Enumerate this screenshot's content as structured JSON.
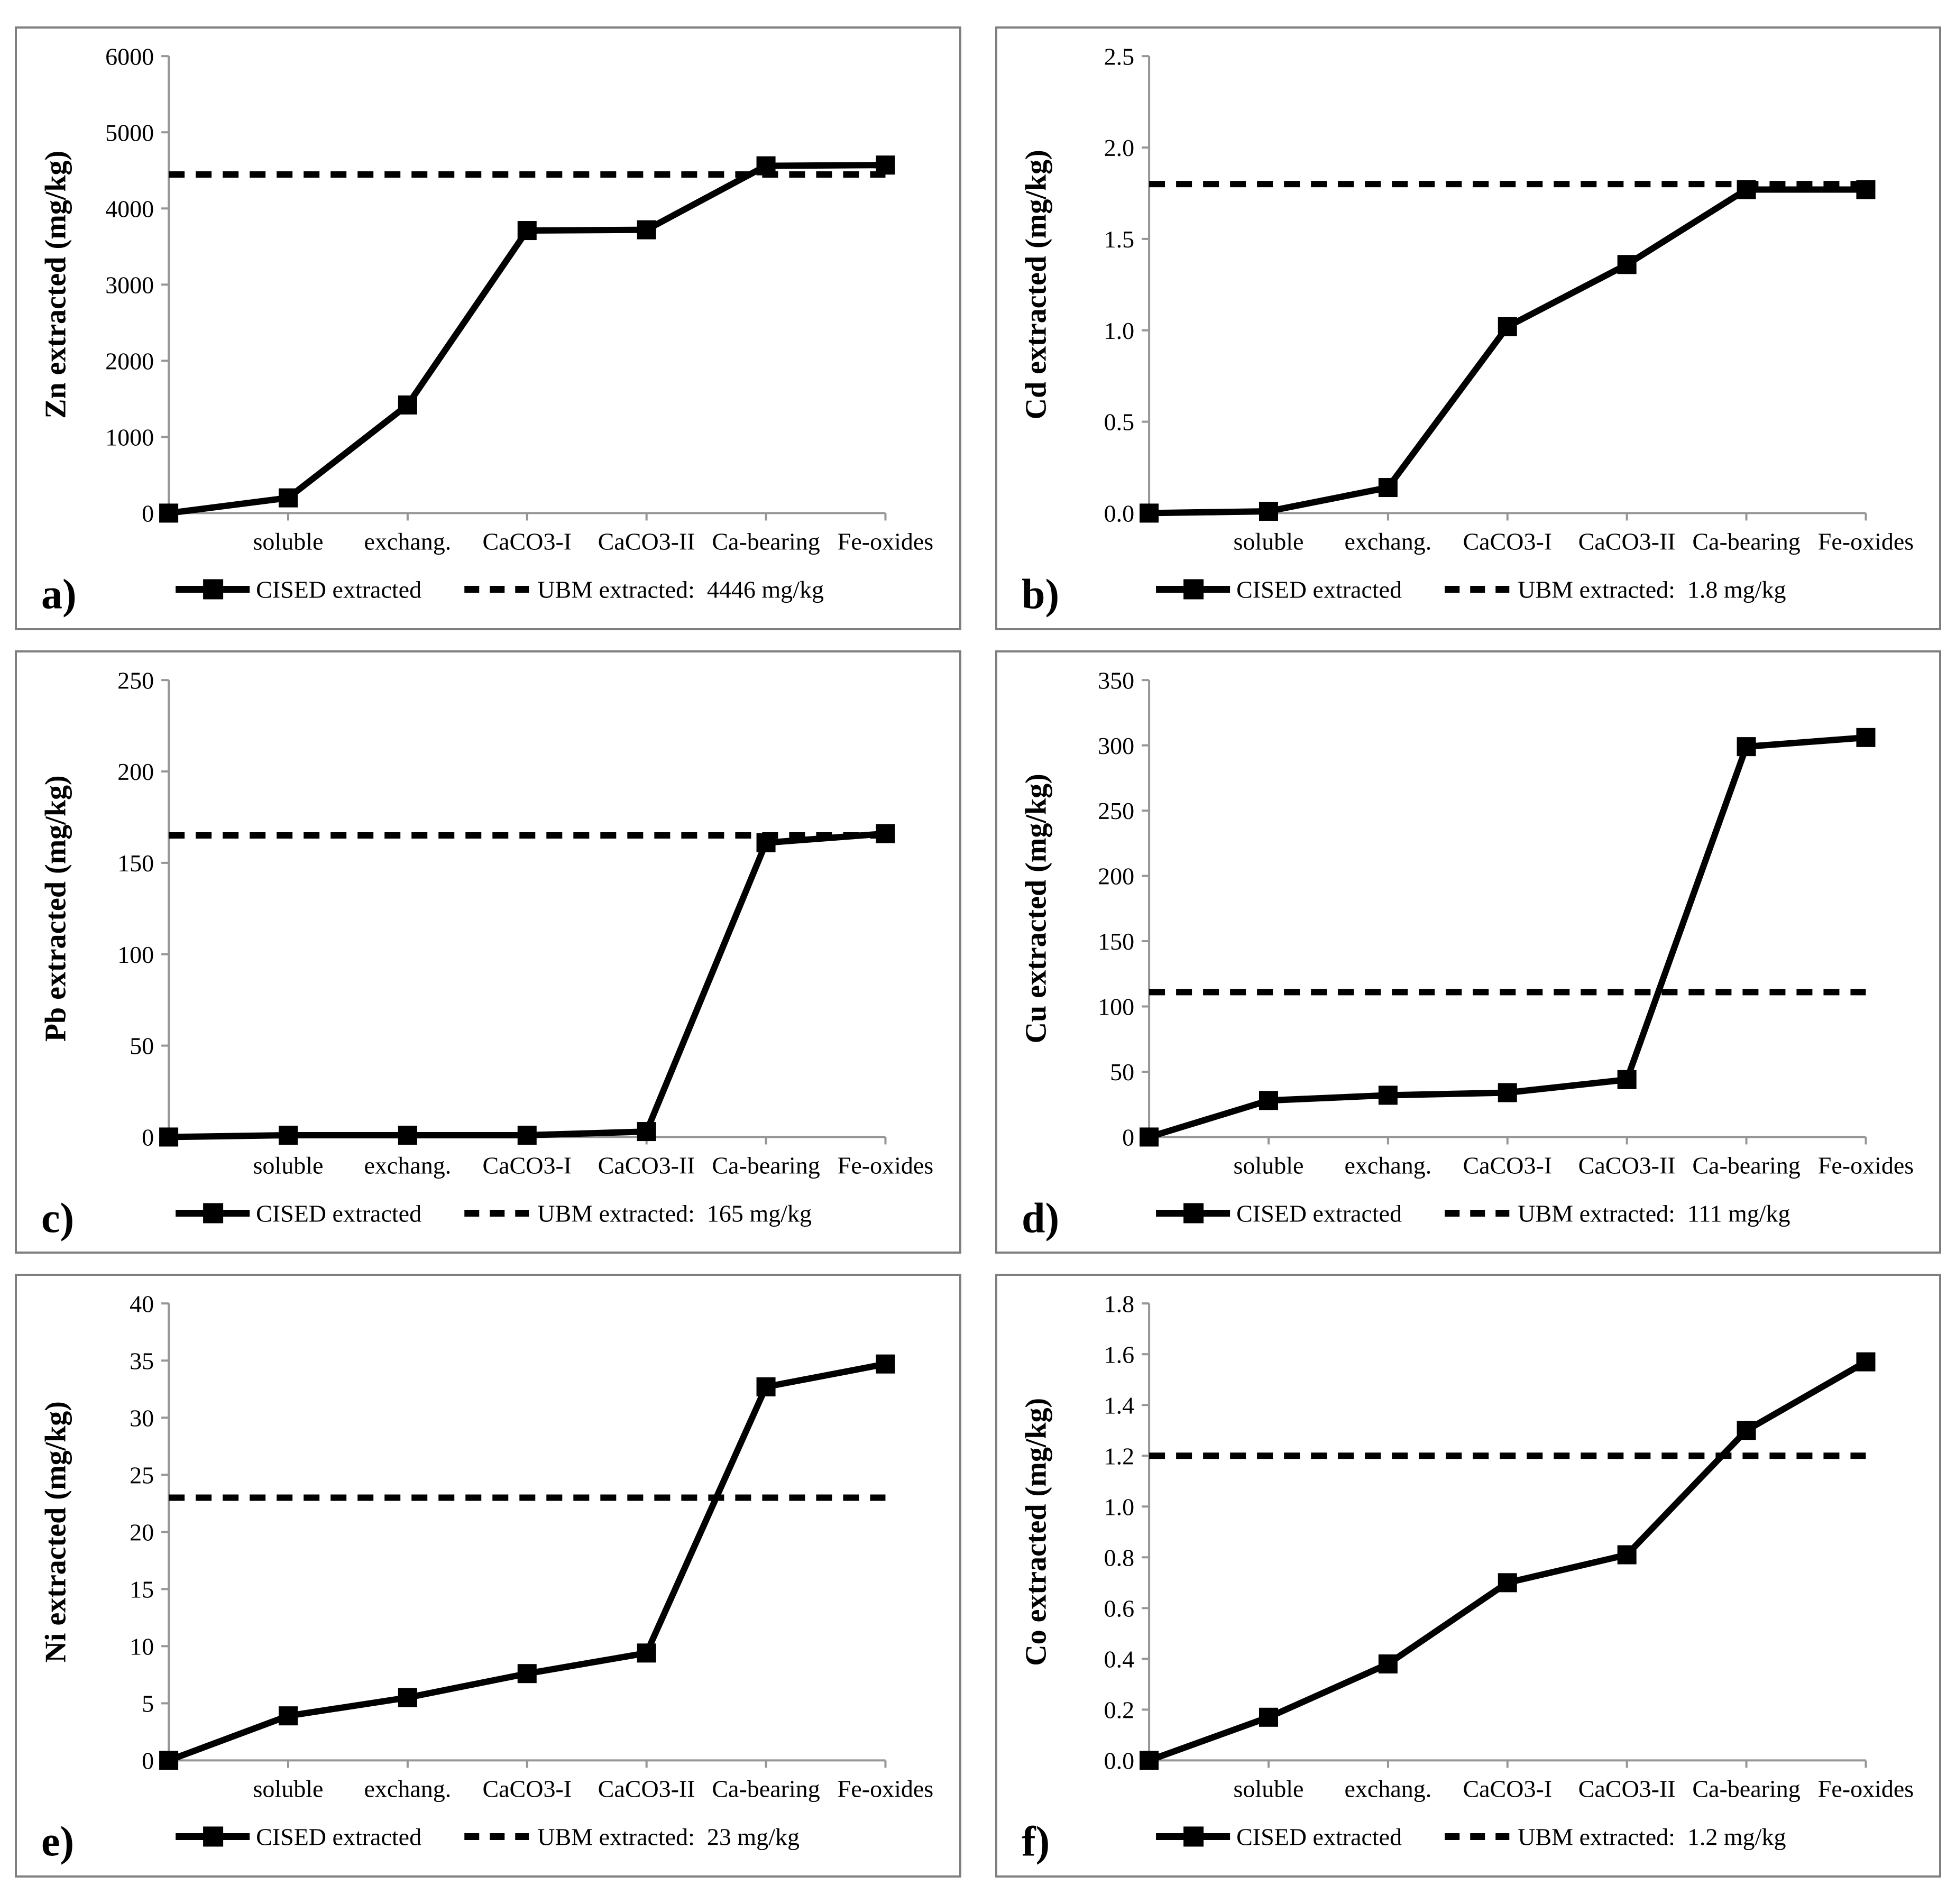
{
  "colors": {
    "series": "#000000",
    "reference_line": "#000000",
    "axis": "#969696",
    "panel_border": "#7f7f7f",
    "background": "#ffffff",
    "text": "#000000"
  },
  "chart_data": [
    {
      "type": "line",
      "panel_label": "a)",
      "ylabel": "Zn extracted (mg/kg)",
      "xlabel": "",
      "ylim": [
        0,
        6000
      ],
      "ytick_step": 1000,
      "yticks": [
        "0",
        "1000",
        "2000",
        "3000",
        "4000",
        "5000",
        "6000"
      ],
      "categories": [
        "",
        "soluble",
        "exchang.",
        "CaCO3-I",
        "CaCO3-II",
        "Ca-bearing",
        "Fe-oxides"
      ],
      "series": [
        {
          "name": "CISED extracted",
          "marker": "filled-square",
          "values": [
            0,
            200,
            1420,
            3710,
            3720,
            4560,
            4570
          ]
        }
      ],
      "reference_line": {
        "label": "UBM extracted:  4446 mg/kg",
        "value": 4446,
        "style": "dashed"
      },
      "grid": "off",
      "legend_position": "bottom"
    },
    {
      "type": "line",
      "panel_label": "b)",
      "ylabel": "Cd extracted (mg/kg)",
      "xlabel": "",
      "ylim": [
        0,
        2.5
      ],
      "ytick_step": 0.5,
      "yticks": [
        "0.0",
        "0.5",
        "1.0",
        "1.5",
        "2.0",
        "2.5"
      ],
      "categories": [
        "",
        "soluble",
        "exchang.",
        "CaCO3-I",
        "CaCO3-II",
        "Ca-bearing",
        "Fe-oxides"
      ],
      "series": [
        {
          "name": "CISED extracted",
          "marker": "filled-square",
          "values": [
            0,
            0.01,
            0.14,
            1.02,
            1.36,
            1.77,
            1.77
          ]
        }
      ],
      "reference_line": {
        "label": "UBM extracted:  1.8 mg/kg",
        "value": 1.8,
        "style": "dashed"
      },
      "grid": "off",
      "legend_position": "bottom"
    },
    {
      "type": "line",
      "panel_label": "c)",
      "ylabel": "Pb extracted (mg/kg)",
      "xlabel": "",
      "ylim": [
        0,
        250
      ],
      "ytick_step": 50,
      "yticks": [
        "0",
        "50",
        "100",
        "150",
        "200",
        "250"
      ],
      "categories": [
        "",
        "soluble",
        "exchang.",
        "CaCO3-I",
        "CaCO3-II",
        "Ca-bearing",
        "Fe-oxides"
      ],
      "series": [
        {
          "name": "CISED extracted",
          "marker": "filled-square",
          "values": [
            0,
            1,
            1,
            1,
            3,
            161,
            166
          ]
        }
      ],
      "reference_line": {
        "label": "UBM extracted:  165 mg/kg",
        "value": 165,
        "style": "dashed"
      },
      "grid": "off",
      "legend_position": "bottom"
    },
    {
      "type": "line",
      "panel_label": "d)",
      "ylabel": "Cu extracted (mg/kg)",
      "xlabel": "",
      "ylim": [
        0,
        350
      ],
      "ytick_step": 50,
      "yticks": [
        "0",
        "50",
        "100",
        "150",
        "200",
        "250",
        "300",
        "350"
      ],
      "categories": [
        "",
        "soluble",
        "exchang.",
        "CaCO3-I",
        "CaCO3-II",
        "Ca-bearing",
        "Fe-oxides"
      ],
      "series": [
        {
          "name": "CISED extracted",
          "marker": "filled-square",
          "values": [
            0,
            28,
            32,
            34,
            44,
            299,
            306
          ]
        }
      ],
      "reference_line": {
        "label": "UBM extracted:  111 mg/kg",
        "value": 111,
        "style": "dashed"
      },
      "grid": "off",
      "legend_position": "bottom"
    },
    {
      "type": "line",
      "panel_label": "e)",
      "ylabel": "Ni extracted (mg/kg)",
      "xlabel": "",
      "ylim": [
        0,
        40
      ],
      "ytick_step": 5,
      "yticks": [
        "0",
        "5",
        "10",
        "15",
        "20",
        "25",
        "30",
        "35",
        "40"
      ],
      "categories": [
        "",
        "soluble",
        "exchang.",
        "CaCO3-I",
        "CaCO3-II",
        "Ca-bearing",
        "Fe-oxides"
      ],
      "series": [
        {
          "name": "CISED extracted",
          "marker": "filled-square",
          "values": [
            0,
            3.9,
            5.5,
            7.6,
            9.4,
            32.7,
            34.7
          ]
        }
      ],
      "reference_line": {
        "label": "UBM extracted:  23 mg/kg",
        "value": 23,
        "style": "dashed"
      },
      "grid": "off",
      "legend_position": "bottom"
    },
    {
      "type": "line",
      "panel_label": "f)",
      "ylabel": "Co extracted (mg/kg)",
      "xlabel": "",
      "ylim": [
        0,
        1.8
      ],
      "ytick_step": 0.2,
      "yticks": [
        "0.0",
        "0.2",
        "0.4",
        "0.6",
        "0.8",
        "1.0",
        "1.2",
        "1.4",
        "1.6",
        "1.8"
      ],
      "categories": [
        "",
        "soluble",
        "exchang.",
        "CaCO3-I",
        "CaCO3-II",
        "Ca-bearing",
        "Fe-oxides"
      ],
      "series": [
        {
          "name": "CISED extracted",
          "marker": "filled-square",
          "values": [
            0,
            0.17,
            0.38,
            0.7,
            0.81,
            1.3,
            1.57
          ]
        }
      ],
      "reference_line": {
        "label": "UBM extracted:  1.2 mg/kg",
        "value": 1.2,
        "style": "dashed"
      },
      "grid": "off",
      "legend_position": "bottom"
    }
  ]
}
